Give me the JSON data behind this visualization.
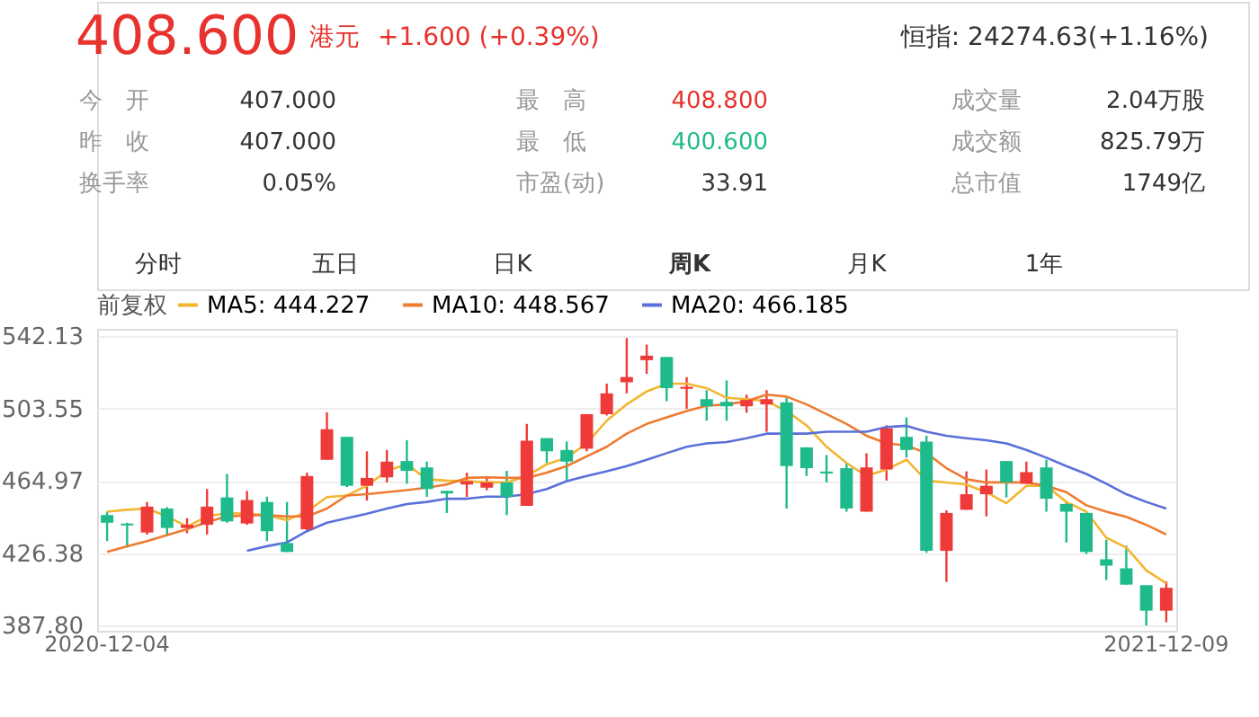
{
  "chart_data": [
    {
      "type": "other",
      "annotations": [
        "408.600",
        "港元",
        "+1.600 (+0.39%)",
        "恒指: 24274.63(+1.16%)",
        "今　开",
        "407.000",
        "最　高",
        "408.800",
        "成交量",
        "2.04万股",
        "昨　收",
        "407.000",
        "最　低",
        "400.600",
        "成交额",
        "825.79万",
        "换手率",
        "0.05%",
        "市盈(动)",
        "33.91",
        "总市值",
        "1749亿",
        "分时",
        "五日",
        "日K",
        "周K",
        "月K",
        "1年"
      ]
    },
    {
      "type": "candlestick",
      "legend_title": "前复权",
      "legend": "top left",
      "grid": "y",
      "categories": [
        "2020-12-04",
        null,
        null,
        null,
        null,
        null,
        null,
        null,
        null,
        null,
        null,
        null,
        null,
        null,
        null,
        null,
        null,
        null,
        null,
        null,
        null,
        null,
        null,
        null,
        null,
        null,
        null,
        null,
        null,
        null,
        null,
        null,
        null,
        null,
        null,
        null,
        null,
        null,
        null,
        null,
        null,
        null,
        null,
        null,
        null,
        null,
        null,
        null,
        null,
        null,
        null,
        null,
        null,
        "2021-12-09"
      ],
      "ylim": [
        385,
        546
      ],
      "yticks": [
        {
          "value": 387.8,
          "label": "387.80"
        },
        {
          "value": 426.38,
          "label": "426.38"
        },
        {
          "value": 464.97,
          "label": "464.97"
        },
        {
          "value": 503.55,
          "label": "503.55"
        },
        {
          "value": 542.13,
          "label": "542.13"
        }
      ],
      "ohlc": [
        [
          446.7,
          448.5,
          432.8,
          442.6
        ],
        [
          442.2,
          442.6,
          429.4,
          441.2
        ],
        [
          437.4,
          453.7,
          436.3,
          451.2
        ],
        [
          450.2,
          450.9,
          435.3,
          439.8
        ],
        [
          439.8,
          445.0,
          437.0,
          441.5
        ],
        [
          441.5,
          460.6,
          436.3,
          451.2
        ],
        [
          456.1,
          468.6,
          442.6,
          443.3
        ],
        [
          442.2,
          459.6,
          441.5,
          454.7
        ],
        [
          453.7,
          456.5,
          432.8,
          438.1
        ],
        [
          431.8,
          453.7,
          427.0,
          427.0
        ],
        [
          439.1,
          469.3,
          438.4,
          467.5
        ],
        [
          476.2,
          501.5,
          476.2,
          492.5
        ],
        [
          488.4,
          488.4,
          461.6,
          462.3
        ],
        [
          462.3,
          480.7,
          454.4,
          466.5
        ],
        [
          466.8,
          481.4,
          464.1,
          475.2
        ],
        [
          475.5,
          486.6,
          463.4,
          470.3
        ],
        [
          472.1,
          475.2,
          456.4,
          460.6
        ],
        [
          459.6,
          459.6,
          447.8,
          458.2
        ],
        [
          463.0,
          469.3,
          456.4,
          464.8
        ],
        [
          461.3,
          467.5,
          459.9,
          464.1
        ],
        [
          464.1,
          470.3,
          446.7,
          456.4
        ],
        [
          451.6,
          495.3,
          451.6,
          486.3
        ],
        [
          487.7,
          487.7,
          474.5,
          480.7
        ],
        [
          481.4,
          485.9,
          464.8,
          475.2
        ],
        [
          482.1,
          500.5,
          480.7,
          500.5
        ],
        [
          500.5,
          516.8,
          499.8,
          511.6
        ],
        [
          517.5,
          541.1,
          511.6,
          520.3
        ],
        [
          529.3,
          537.6,
          522.0,
          531.7
        ],
        [
          531.0,
          531.0,
          507.4,
          514.4
        ],
        [
          514.0,
          520.3,
          503.3,
          515.1
        ],
        [
          508.5,
          513.3,
          497.0,
          504.7
        ],
        [
          507.1,
          518.5,
          497.0,
          504.7
        ],
        [
          504.7,
          510.9,
          501.2,
          508.1
        ],
        [
          505.7,
          513.3,
          491.1,
          508.5
        ],
        [
          506.8,
          509.2,
          450.2,
          472.8
        ],
        [
          482.8,
          482.8,
          467.5,
          471.7
        ],
        [
          469.9,
          478.7,
          464.1,
          468.9
        ],
        [
          471.7,
          474.5,
          448.5,
          450.2
        ],
        [
          448.5,
          479.7,
          448.5,
          472.1
        ],
        [
          471.0,
          494.6,
          465.1,
          492.9
        ],
        [
          488.4,
          498.8,
          477.3,
          481.4
        ],
        [
          485.9,
          489.0,
          426.6,
          427.6
        ],
        [
          427.6,
          449.2,
          411.0,
          447.8
        ],
        [
          449.5,
          470.0,
          449.5,
          457.8
        ],
        [
          457.8,
          471.0,
          446.0,
          462.3
        ],
        [
          475.5,
          475.5,
          456.1,
          464.1
        ],
        [
          463.4,
          475.2,
          463.4,
          469.6
        ],
        [
          472.1,
          476.2,
          448.5,
          455.4
        ],
        [
          452.6,
          453.7,
          432.1,
          448.5
        ],
        [
          447.8,
          447.8,
          425.9,
          427.0
        ],
        [
          423.1,
          433.5,
          412.0,
          419.7
        ],
        [
          418.3,
          430.4,
          409.6,
          409.6
        ],
        [
          409.3,
          409.3,
          387.8,
          395.7
        ],
        [
          395.7,
          411.4,
          389.5,
          407.9
        ]
      ],
      "colors": [
        "#1fba8c",
        "#1fba8c",
        "#ef3a3a",
        "#1fba8c",
        "#ef3a3a",
        "#ef3a3a",
        "#1fba8c",
        "#ef3a3a",
        "#1fba8c",
        "#1fba8c",
        "#ef3a3a",
        "#ef3a3a",
        "#1fba8c",
        "#ef3a3a",
        "#ef3a3a",
        "#1fba8c",
        "#1fba8c",
        "#1fba8c",
        "#ef3a3a",
        "#ef3a3a",
        "#1fba8c",
        "#ef3a3a",
        "#1fba8c",
        "#1fba8c",
        "#ef3a3a",
        "#ef3a3a",
        "#ef3a3a",
        "#ef3a3a",
        "#1fba8c",
        "#ef3a3a",
        "#1fba8c",
        "#1fba8c",
        "#ef3a3a",
        "#ef3a3a",
        "#1fba8c",
        "#1fba8c",
        "#1fba8c",
        "#1fba8c",
        "#ef3a3a",
        "#ef3a3a",
        "#1fba8c",
        "#1fba8c",
        "#ef3a3a",
        "#ef3a3a",
        "#ef3a3a",
        "#1fba8c",
        "#ef3a3a",
        "#1fba8c",
        "#1fba8c",
        "#1fba8c",
        "#1fba8c",
        "#1fba8c",
        "#1fba8c",
        "#ef3a3a"
      ],
      "series": [
        {
          "name": "MA5: 444.227",
          "type": "line",
          "color": "#f2b630",
          "values": [
            448.5,
            449.5,
            450.2,
            446,
            440.5,
            446.0,
            447.8,
            447.4,
            446.7,
            444.0,
            448.5,
            456.3,
            457.1,
            462.3,
            470.3,
            473.8,
            465.8,
            465.1,
            464.8,
            464.1,
            464.1,
            467.5,
            473.8,
            477.3,
            484.9,
            497.0,
            505.7,
            512.6,
            516.8,
            516.8,
            514.4,
            509.2,
            508.5,
            507.4,
            502.2,
            494.5,
            483.1,
            474.5,
            467.5,
            471.0,
            476.2,
            465.1,
            464.1,
            463.0,
            458.8,
            453.0,
            462.3,
            462.3,
            453.7,
            448.5,
            434.6,
            429.4,
            417.2,
            410.3
          ]
        },
        {
          "name": "MA10: 448.567",
          "type": "line",
          "color": "#ee7b30",
          "values": [
            427.0,
            430,
            432.8,
            436,
            439.1,
            443,
            446,
            446.5,
            446.7,
            446.0,
            446.0,
            450.2,
            457.1,
            457.8,
            458.9,
            460.0,
            461.3,
            463.0,
            466.5,
            466.8,
            466.5,
            466.5,
            469.3,
            472.8,
            478.0,
            483.1,
            490.1,
            495.3,
            498.8,
            502.2,
            505.0,
            505.7,
            507.4,
            510.9,
            509.9,
            505.7,
            500.5,
            495.3,
            489.0,
            484.9,
            483.8,
            479.7,
            471.7,
            465.8,
            464.1,
            464.1,
            464.1,
            462.3,
            458.9,
            451.9,
            448.5,
            445.7,
            441.5,
            436.3
          ]
        },
        {
          "name": "MA20: 466.185",
          "type": "line",
          "color": "#5b70d8",
          "values": [
            null,
            null,
            null,
            null,
            null,
            null,
            null,
            427.6,
            430.1,
            432.1,
            438.1,
            442.6,
            445.0,
            447.4,
            450.2,
            452.6,
            453.7,
            455.4,
            455.4,
            456.5,
            456.5,
            457.8,
            460.6,
            464.8,
            467.5,
            470.0,
            472.8,
            476.2,
            479.7,
            483.1,
            484.9,
            485.6,
            487.7,
            490.1,
            490.1,
            490.1,
            491.1,
            491.1,
            491.1,
            493.6,
            494.3,
            491.1,
            489.0,
            487.7,
            486.6,
            484.9,
            481.4,
            477.3,
            472.8,
            468.6,
            463.4,
            457.8,
            453.7,
            450.2
          ]
        }
      ]
    }
  ]
}
